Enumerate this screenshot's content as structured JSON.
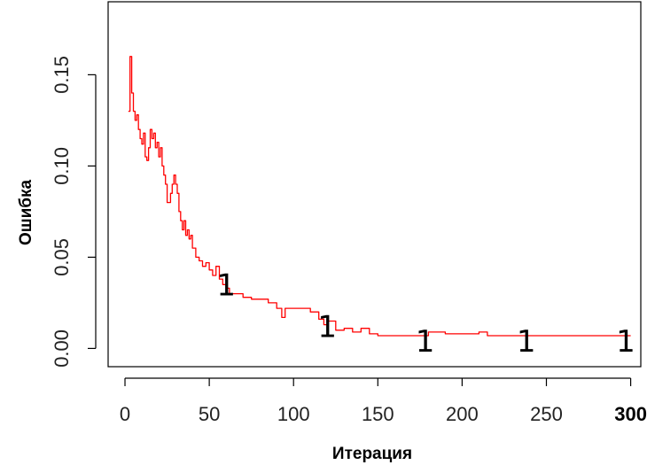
{
  "chart_data": {
    "type": "line",
    "title": "",
    "xlabel": "Итерация",
    "ylabel": "Ошибка",
    "xlim": [
      -10,
      306
    ],
    "ylim": [
      -0.01,
      0.19
    ],
    "x_ticks": [
      0,
      50,
      100,
      150,
      200,
      250,
      300
    ],
    "x_tick_labels": [
      "0",
      "50",
      "100",
      "150",
      "200",
      "250",
      "300"
    ],
    "y_ticks": [
      0.0,
      0.05,
      0.1,
      0.15
    ],
    "y_tick_labels": [
      "0.00",
      "0.05",
      "0.10",
      "0.15"
    ],
    "grid": false,
    "legend": "none",
    "line_color": "#ff0000",
    "series": [
      {
        "x": [
          2,
          3,
          4,
          5,
          6,
          7,
          8,
          9,
          10,
          11,
          12,
          13,
          14,
          15,
          16,
          17,
          18,
          19,
          20,
          21,
          22,
          23,
          24,
          25,
          26,
          27,
          28,
          29,
          30,
          31,
          32,
          33,
          34,
          35,
          36,
          37,
          38,
          39,
          40,
          42,
          44,
          46,
          48,
          50,
          52,
          54,
          56,
          58,
          60,
          62,
          65,
          70,
          75,
          80,
          85,
          90,
          93,
          95,
          100,
          105,
          110,
          115,
          118,
          120,
          125,
          130,
          135,
          140,
          145,
          150,
          152,
          160,
          170,
          180,
          190,
          200,
          210,
          215,
          220,
          230,
          240,
          250,
          260,
          270,
          280,
          290,
          300
        ],
        "y": [
          0.13,
          0.16,
          0.14,
          0.13,
          0.125,
          0.128,
          0.12,
          0.115,
          0.112,
          0.118,
          0.105,
          0.103,
          0.11,
          0.12,
          0.115,
          0.118,
          0.11,
          0.113,
          0.105,
          0.11,
          0.1,
          0.095,
          0.09,
          0.08,
          0.08,
          0.085,
          0.09,
          0.095,
          0.09,
          0.085,
          0.075,
          0.07,
          0.065,
          0.07,
          0.062,
          0.065,
          0.06,
          0.062,
          0.055,
          0.05,
          0.048,
          0.045,
          0.047,
          0.043,
          0.04,
          0.045,
          0.038,
          0.035,
          0.033,
          0.03,
          0.03,
          0.028,
          0.027,
          0.027,
          0.025,
          0.022,
          0.017,
          0.022,
          0.022,
          0.022,
          0.02,
          0.016,
          0.013,
          0.015,
          0.01,
          0.011,
          0.009,
          0.011,
          0.008,
          0.007,
          0.007,
          0.007,
          0.007,
          0.009,
          0.008,
          0.008,
          0.009,
          0.007,
          0.007,
          0.007,
          0.007,
          0.007,
          0.007,
          0.007,
          0.007,
          0.007,
          0.007
        ]
      }
    ],
    "markers": [
      {
        "x": 60,
        "y": 0.035,
        "label": "1"
      },
      {
        "x": 120,
        "y": 0.012,
        "label": "1"
      },
      {
        "x": 178,
        "y": 0.004,
        "label": "1"
      },
      {
        "x": 238,
        "y": 0.004,
        "label": "1"
      },
      {
        "x": 297,
        "y": 0.004,
        "label": "1"
      }
    ]
  }
}
